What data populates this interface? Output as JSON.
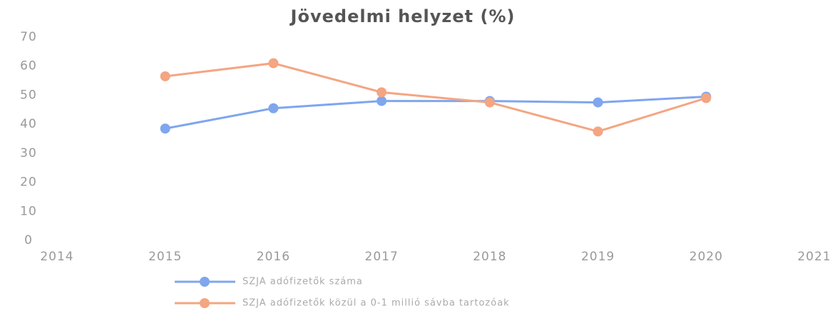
{
  "chart_data": {
    "type": "line",
    "title": "Jövedelmi helyzet (%)",
    "x": [
      2015,
      2016,
      2017,
      2018,
      2019,
      2020
    ],
    "series": [
      {
        "name": "SZJA adófizetők száma",
        "color": "#7fa6ee",
        "values": [
          38.5,
          45.5,
          48,
          48,
          47.5,
          49.5
        ]
      },
      {
        "name": "SZJA adófizetők közül a 0-1 millió sávba tartozóak",
        "color": "#f4a582",
        "values": [
          56.5,
          61,
          51,
          47.5,
          37.5,
          49
        ]
      }
    ],
    "xlim": [
      2014,
      2021
    ],
    "xticks": [
      2014,
      2015,
      2016,
      2017,
      2018,
      2019,
      2020,
      2021
    ],
    "ylim": [
      0,
      70
    ],
    "yticks": [
      0,
      10,
      20,
      30,
      40,
      50,
      60,
      70
    ],
    "grid": false,
    "legend": "bottom"
  }
}
